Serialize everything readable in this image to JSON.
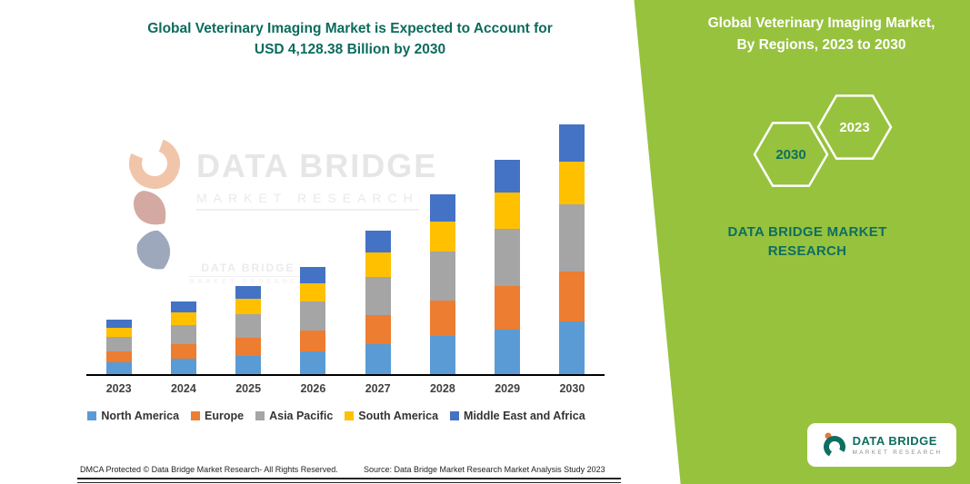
{
  "header": {
    "title_line1": "Global Veterinary Imaging Market is Expected to Account for",
    "title_line2": "USD 4,128.38 Billion by 2030"
  },
  "side_panel": {
    "title_line1": "Global Veterinary Imaging Market,",
    "title_line2": "By Regions, 2023 to 2030",
    "hex_back_year": "2030",
    "hex_front_year": "2023",
    "brand_line1": "DATA BRIDGE MARKET",
    "brand_line2": "RESEARCH",
    "logo_title": "DATA BRIDGE",
    "logo_subtitle": "MARKET RESEARCH",
    "panel_color": "#97c23e",
    "accent_teal": "#0e6e60"
  },
  "watermark": {
    "line1": "DATA BRIDGE",
    "line2": "MARKET  RESEARCH",
    "mini_line1": "DATA BRIDGE",
    "mini_line2": "MARKET RESEARCH"
  },
  "footer": {
    "dmca": "DMCA Protected © Data Bridge Market Research-  All Rights Reserved.",
    "source": "Source: Data Bridge Market Research  Market Analysis Study 2023"
  },
  "chart_data": {
    "type": "bar",
    "stacked": true,
    "title": "Global Veterinary Imaging Market, By Regions, 2023 to 2030",
    "unit": "USD Billion (estimated; only the 2030 total of 4,128.38 is labeled on the image)",
    "categories": [
      "2023",
      "2024",
      "2025",
      "2026",
      "2027",
      "2028",
      "2029",
      "2030"
    ],
    "series": [
      {
        "name": "North America",
        "color": "#5B9BD5",
        "values": [
          189,
          252,
          307,
          372,
          498,
          624,
          743,
          867
        ]
      },
      {
        "name": "Europe",
        "color": "#ED7D31",
        "values": [
          180,
          240,
          292,
          354,
          474,
          594,
          708,
          826
        ]
      },
      {
        "name": "Asia Pacific",
        "color": "#A5A5A5",
        "values": [
          243,
          324,
          394,
          478,
          640,
          802,
          956,
          1114
        ]
      },
      {
        "name": "South America",
        "color": "#FFC000",
        "values": [
          153,
          204,
          248,
          301,
          403,
          505,
          602,
          702
        ]
      },
      {
        "name": "Middle East and Africa",
        "color": "#4472C4",
        "values": [
          135,
          180,
          219,
          265,
          355,
          445,
          531,
          619
        ]
      }
    ],
    "totals": [
      900,
      1200,
      1460,
      1770,
      2370,
      2970,
      3540,
      4128.38
    ],
    "ylim": [
      0,
      4300
    ],
    "grid": false,
    "legend_position": "bottom",
    "xlabel": "",
    "ylabel": ""
  }
}
